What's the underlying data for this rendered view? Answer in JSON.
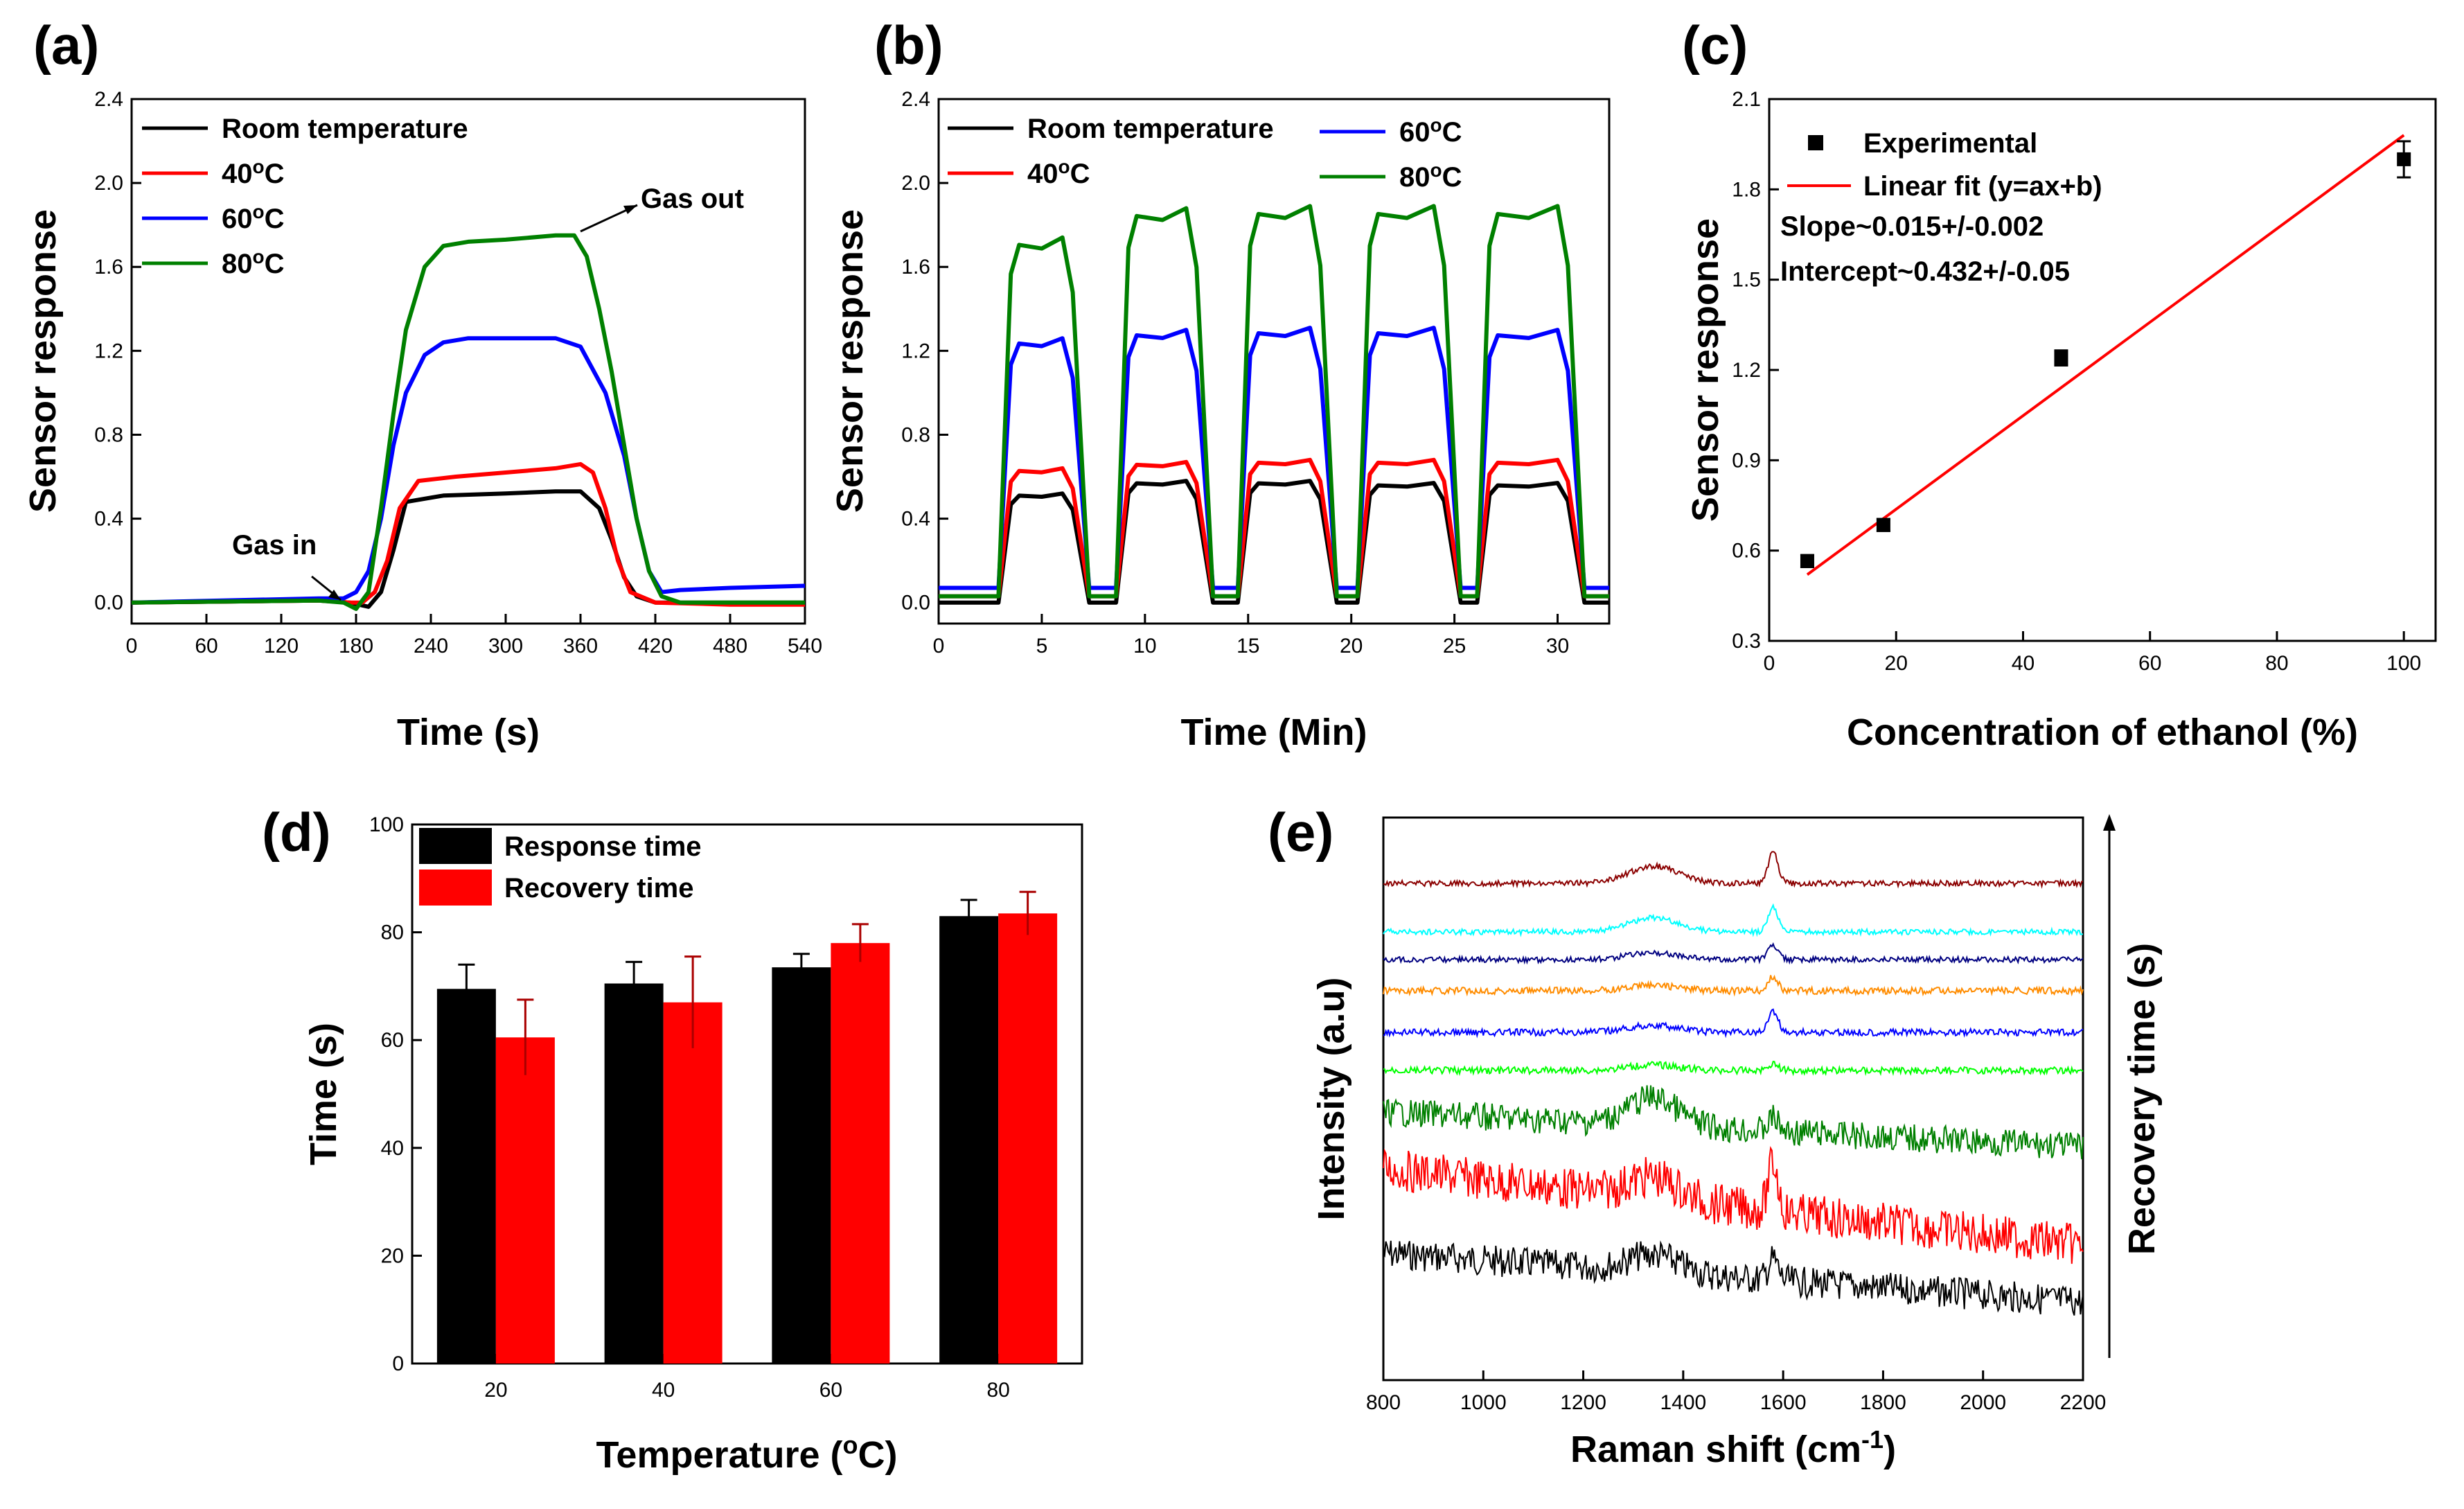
{
  "figure": {
    "panels": [
      "(a)",
      "(b)",
      "(c)",
      "(d)",
      "(e)"
    ]
  },
  "chart_data": [
    {
      "id": "a",
      "type": "line",
      "label": "(a)",
      "xlabel": "Time (s)",
      "ylabel": "Sensor response",
      "xlim": [
        0,
        540
      ],
      "ylim": [
        -0.1,
        2.4
      ],
      "xticks": [
        0,
        60,
        120,
        180,
        240,
        300,
        360,
        420,
        480,
        540
      ],
      "yticks": [
        "0.0",
        "0.4",
        "0.8",
        "1.2",
        "1.6",
        "2.0",
        "2.4"
      ],
      "legend_position": "top-left",
      "series": [
        {
          "name": "Room temperature",
          "color": "#000000",
          "x": [
            0,
            150,
            175,
            190,
            200,
            210,
            220,
            250,
            300,
            340,
            360,
            375,
            385,
            395,
            405,
            420,
            480,
            540
          ],
          "y": [
            0.0,
            0.01,
            0.0,
            -0.02,
            0.05,
            0.25,
            0.48,
            0.51,
            0.52,
            0.53,
            0.53,
            0.45,
            0.3,
            0.12,
            0.03,
            0.0,
            0.0,
            0.0
          ]
        },
        {
          "name": "40°C",
          "color": "#ff0000",
          "x": [
            0,
            150,
            175,
            185,
            195,
            205,
            215,
            230,
            260,
            300,
            340,
            360,
            370,
            380,
            390,
            400,
            420,
            480,
            540
          ],
          "y": [
            0.0,
            0.01,
            0.0,
            0.0,
            0.05,
            0.2,
            0.45,
            0.58,
            0.6,
            0.62,
            0.64,
            0.66,
            0.62,
            0.45,
            0.2,
            0.05,
            0.0,
            -0.01,
            -0.01
          ]
        },
        {
          "name": "60°C",
          "color": "#0000ff",
          "x": [
            0,
            150,
            170,
            180,
            190,
            200,
            210,
            220,
            235,
            250,
            270,
            300,
            340,
            360,
            380,
            395,
            405,
            415,
            425,
            440,
            480,
            540
          ],
          "y": [
            0.0,
            0.02,
            0.02,
            0.05,
            0.15,
            0.4,
            0.75,
            1.0,
            1.18,
            1.24,
            1.26,
            1.26,
            1.26,
            1.22,
            1.0,
            0.7,
            0.4,
            0.15,
            0.05,
            0.06,
            0.07,
            0.08
          ]
        },
        {
          "name": "80°C",
          "color": "#008000",
          "x": [
            0,
            150,
            170,
            180,
            190,
            200,
            210,
            220,
            235,
            250,
            270,
            300,
            340,
            355,
            365,
            375,
            385,
            395,
            405,
            415,
            425,
            440,
            480,
            540
          ],
          "y": [
            0.0,
            0.01,
            0.0,
            -0.03,
            0.05,
            0.45,
            0.9,
            1.3,
            1.6,
            1.7,
            1.72,
            1.73,
            1.75,
            1.75,
            1.65,
            1.4,
            1.1,
            0.75,
            0.4,
            0.15,
            0.03,
            0.0,
            0.0,
            0.0
          ]
        }
      ],
      "annotations": [
        "Gas in",
        "Gas out"
      ]
    },
    {
      "id": "b",
      "type": "line",
      "label": "(b)",
      "xlabel": "Time (Min)",
      "ylabel": "Sensor response",
      "xlim": [
        0,
        32.5
      ],
      "ylim": [
        -0.1,
        2.4
      ],
      "xticks": [
        "0",
        "5",
        "10",
        "15",
        "20",
        "25",
        "30"
      ],
      "yticks": [
        "0.0",
        "0.4",
        "0.8",
        "1.2",
        "1.6",
        "2.0",
        "2.4"
      ],
      "legend_position": "top",
      "cycles": [
        {
          "start": 3.0,
          "end": 7.0
        },
        {
          "start": 8.7,
          "end": 13.0
        },
        {
          "start": 14.6,
          "end": 19.0
        },
        {
          "start": 20.4,
          "end": 25.0
        },
        {
          "start": 26.2,
          "end": 31.0
        }
      ],
      "series": [
        {
          "name": "Room temperature",
          "color": "#000000",
          "plateaus": [
            0.52,
            0.58,
            0.58,
            0.57,
            0.57
          ],
          "baseline": 0.0
        },
        {
          "name": "40°C",
          "color": "#ff0000",
          "plateaus": [
            0.64,
            0.67,
            0.68,
            0.68,
            0.68
          ],
          "baseline": 0.03
        },
        {
          "name": "60°C",
          "color": "#0000ff",
          "plateaus": [
            1.26,
            1.3,
            1.31,
            1.31,
            1.3
          ],
          "baseline": 0.07
        },
        {
          "name": "80°C",
          "color": "#008000",
          "plateaus": [
            1.74,
            1.88,
            1.89,
            1.89,
            1.89
          ],
          "baseline": 0.03
        }
      ]
    },
    {
      "id": "c",
      "type": "scatter",
      "label": "(c)",
      "xlabel": "Concentration of ethanol (%)",
      "ylabel": "Sensor response",
      "xlim": [
        0,
        105
      ],
      "ylim": [
        0.3,
        2.1
      ],
      "xticks": [
        "0",
        "20",
        "40",
        "60",
        "80",
        "100"
      ],
      "yticks": [
        "0.3",
        "0.6",
        "0.9",
        "1.2",
        "1.5",
        "1.8",
        "2.1"
      ],
      "legend_position": "top-left",
      "points": [
        {
          "x": 6,
          "y": 0.565,
          "err": 0.02
        },
        {
          "x": 18,
          "y": 0.685,
          "err": 0.02
        },
        {
          "x": 46,
          "y": 1.24,
          "err": 0.025
        },
        {
          "x": 100,
          "y": 1.9,
          "err": 0.06
        }
      ],
      "fit": {
        "x": [
          6,
          100
        ],
        "y": [
          0.52,
          1.98
        ]
      },
      "legend": [
        "Experimental",
        "Linear fit (y=ax+b)"
      ],
      "annotations": [
        "Slope~0.015+/-0.002",
        "Intercept~0.432+/-0.05"
      ],
      "colors": {
        "points": "#000000",
        "fit": "#ff0000"
      }
    },
    {
      "id": "d",
      "type": "bar",
      "label": "(d)",
      "xlabel": "Temperature (°C)",
      "ylabel": "Time (s)",
      "ylim": [
        0,
        100
      ],
      "categories": [
        "20",
        "40",
        "60",
        "80"
      ],
      "yticks": [
        "0",
        "20",
        "40",
        "60",
        "80",
        "100"
      ],
      "legend_position": "top-left",
      "series": [
        {
          "name": "Response time",
          "color": "#000000",
          "values": [
            69.5,
            70.5,
            73.5,
            83
          ],
          "errors": [
            4.5,
            4,
            2.5,
            3
          ]
        },
        {
          "name": "Recovery time",
          "color": "#ff0000",
          "values": [
            60.5,
            67,
            78,
            83.5
          ],
          "errors": [
            7,
            8.5,
            3.5,
            4
          ]
        }
      ]
    },
    {
      "id": "e",
      "type": "line",
      "label": "(e)",
      "xlabel": "Raman shift (cm⁻¹)",
      "ylabel": "Intensity (a.u)",
      "right_label": "Recovery time (s)",
      "xlim": [
        800,
        2200
      ],
      "xticks": [
        "800",
        "1000",
        "1200",
        "1400",
        "1600",
        "1800",
        "2000",
        "2200"
      ],
      "peaks": [
        1340,
        1580
      ],
      "series": [
        {
          "color": "#000000"
        },
        {
          "color": "#ff0000"
        },
        {
          "color": "#008000"
        },
        {
          "color": "#00ff00"
        },
        {
          "color": "#0000ff"
        },
        {
          "color": "#ff8c00"
        },
        {
          "color": "#000080"
        },
        {
          "color": "#00ffff"
        },
        {
          "color": "#8b0000"
        }
      ]
    }
  ]
}
